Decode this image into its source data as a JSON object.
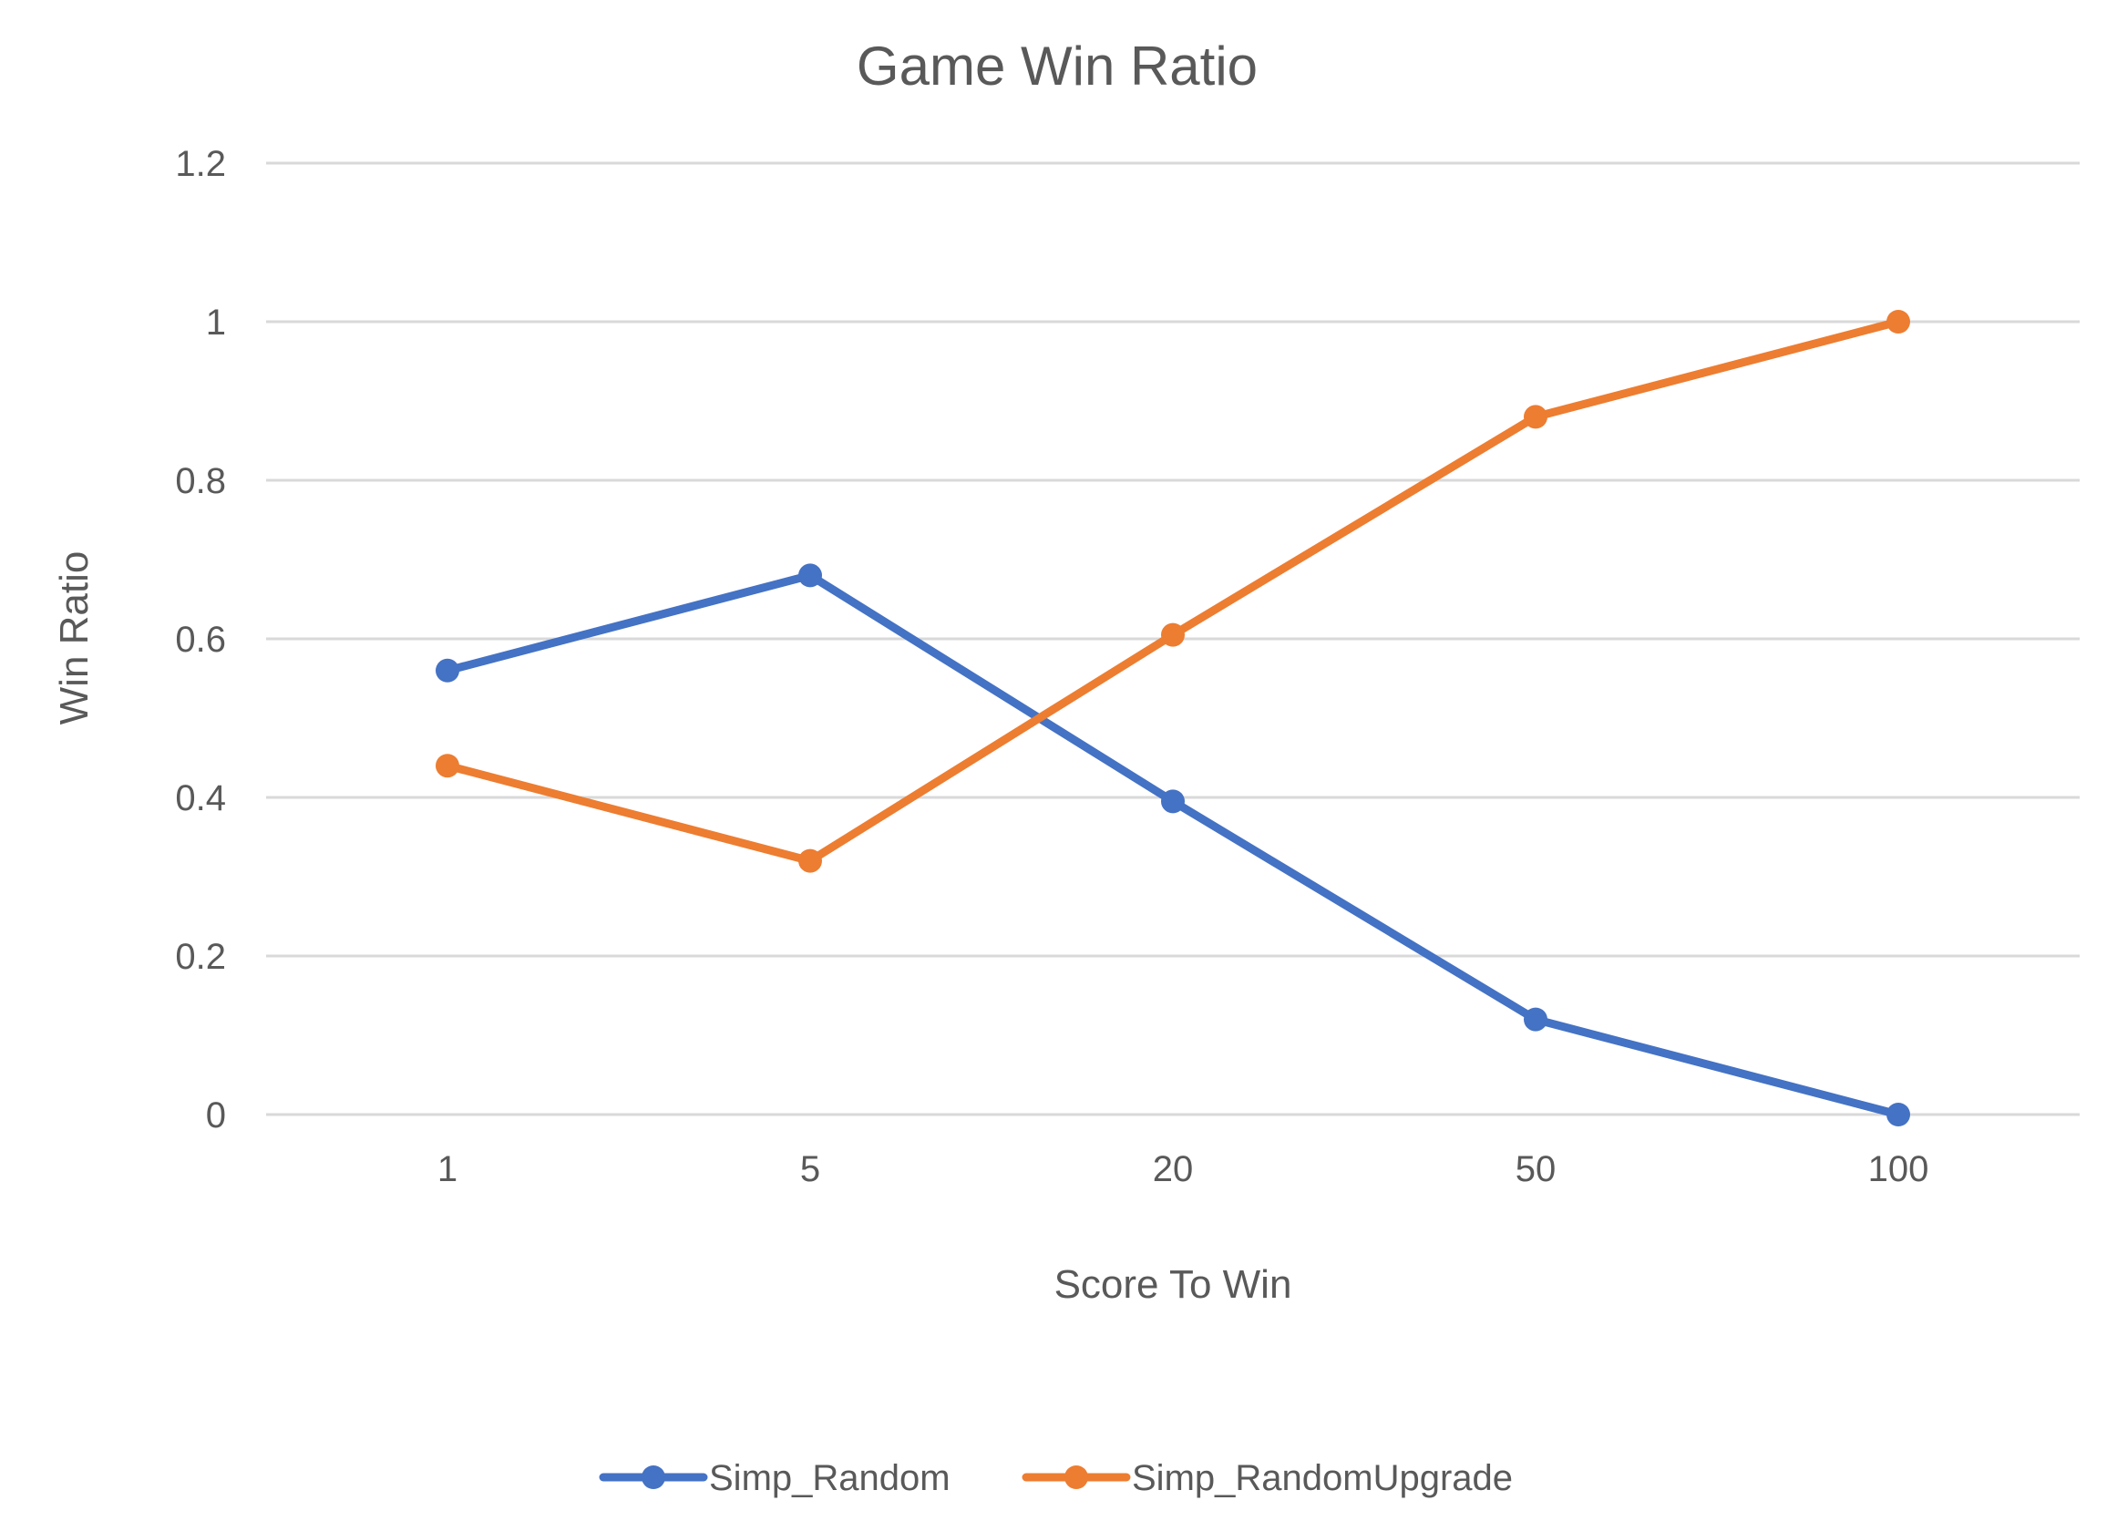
{
  "chart_data": {
    "type": "line",
    "title": "Game Win Ratio",
    "xlabel": "Score To Win",
    "ylabel": "Win Ratio",
    "categories": [
      "1",
      "5",
      "20",
      "50",
      "100"
    ],
    "ylim": [
      0,
      1.2
    ],
    "yticks": [
      "0",
      "0.2",
      "0.4",
      "0.6",
      "0.8",
      "1",
      "1.2"
    ],
    "grid": true,
    "legend_position": "bottom",
    "series": [
      {
        "name": "Simp_Random",
        "color": "#4472C4",
        "values": [
          0.56,
          0.68,
          0.395,
          0.12,
          0.0
        ]
      },
      {
        "name": "Simp_RandomUpgrade",
        "color": "#ED7D31",
        "values": [
          0.44,
          0.32,
          0.605,
          0.88,
          1.0
        ]
      }
    ]
  }
}
